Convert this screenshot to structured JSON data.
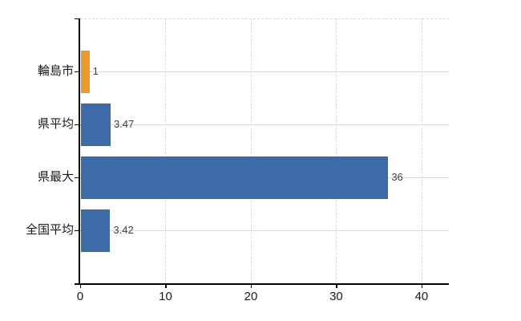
{
  "chart_data": {
    "type": "bar",
    "orientation": "horizontal",
    "title": "",
    "xlabel": "",
    "ylabel": "",
    "categories": [
      "輪島市",
      "県平均",
      "県最大",
      "全国平均"
    ],
    "values": [
      1,
      3.47,
      36,
      3.42
    ],
    "value_labels": [
      "1",
      "3.47",
      "36",
      "3.42"
    ],
    "series": [
      {
        "name": "",
        "values": [
          1,
          3.47,
          36,
          3.42
        ]
      }
    ],
    "bar_colors": [
      "#EC9A2E",
      "#3D6BA7",
      "#3D6BA7",
      "#3D6BA7"
    ],
    "x_ticks": [
      0,
      10,
      20,
      30,
      40
    ],
    "x_tick_labels": [
      "0",
      "10",
      "20",
      "30",
      "40"
    ],
    "xlim": [
      0,
      43.2
    ],
    "grid": true,
    "grid_vertical_style": "dashed",
    "grid_horizontal_style": "solid",
    "legend": false,
    "colors": {
      "axis": "#000000",
      "vertical_grid": "#d9d9d9",
      "horizontal_grid": "#d5dcd2",
      "category_label": "#1a1a1a",
      "value_label": "#404040",
      "background": "#ffffff"
    }
  }
}
